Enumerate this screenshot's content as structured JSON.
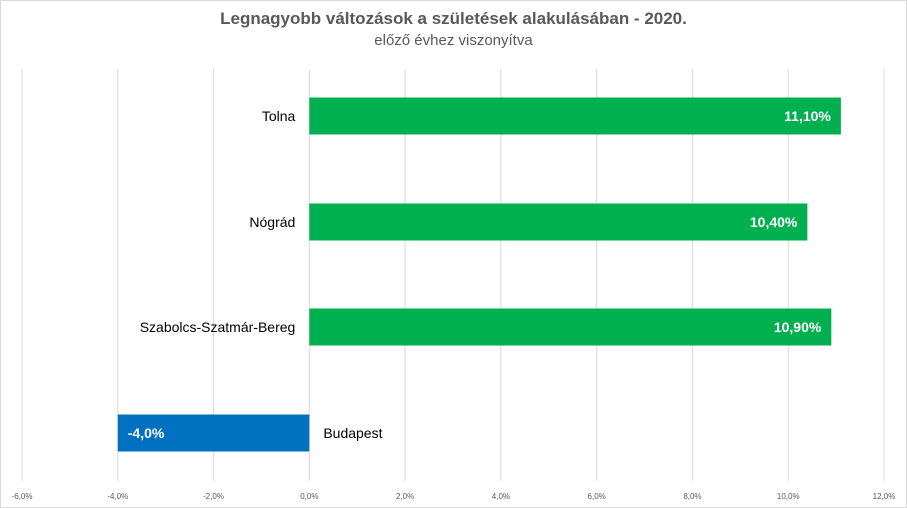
{
  "chart_data": {
    "type": "bar",
    "orientation": "horizontal",
    "title": "Legnagyobb változások a születések alakulásában - 2020.",
    "subtitle": "előző évhez viszonyítva",
    "categories": [
      "Tolna",
      "Nógrád",
      "Szabolcs-Szatmár-Bereg",
      "Budapest"
    ],
    "values": [
      11.1,
      10.4,
      10.9,
      -4.0
    ],
    "data_labels": [
      "11,10%",
      "10,40%",
      "10,90%",
      "-4,0%"
    ],
    "xlim": [
      -6,
      12
    ],
    "x_ticks": [
      -6,
      -4,
      -2,
      0,
      2,
      4,
      6,
      8,
      10,
      12
    ],
    "x_tick_labels": [
      "-6,0%",
      "-4,0%",
      "-2,0%",
      "0,0%",
      "2,0%",
      "4,0%",
      "6,0%",
      "8,0%",
      "10,0%",
      "12,0%"
    ],
    "grid": "vertical",
    "legend": "none",
    "colors": {
      "positive": "#00b050",
      "negative": "#0070c0",
      "grid": "#d9d9d9",
      "text": "#595959"
    }
  }
}
